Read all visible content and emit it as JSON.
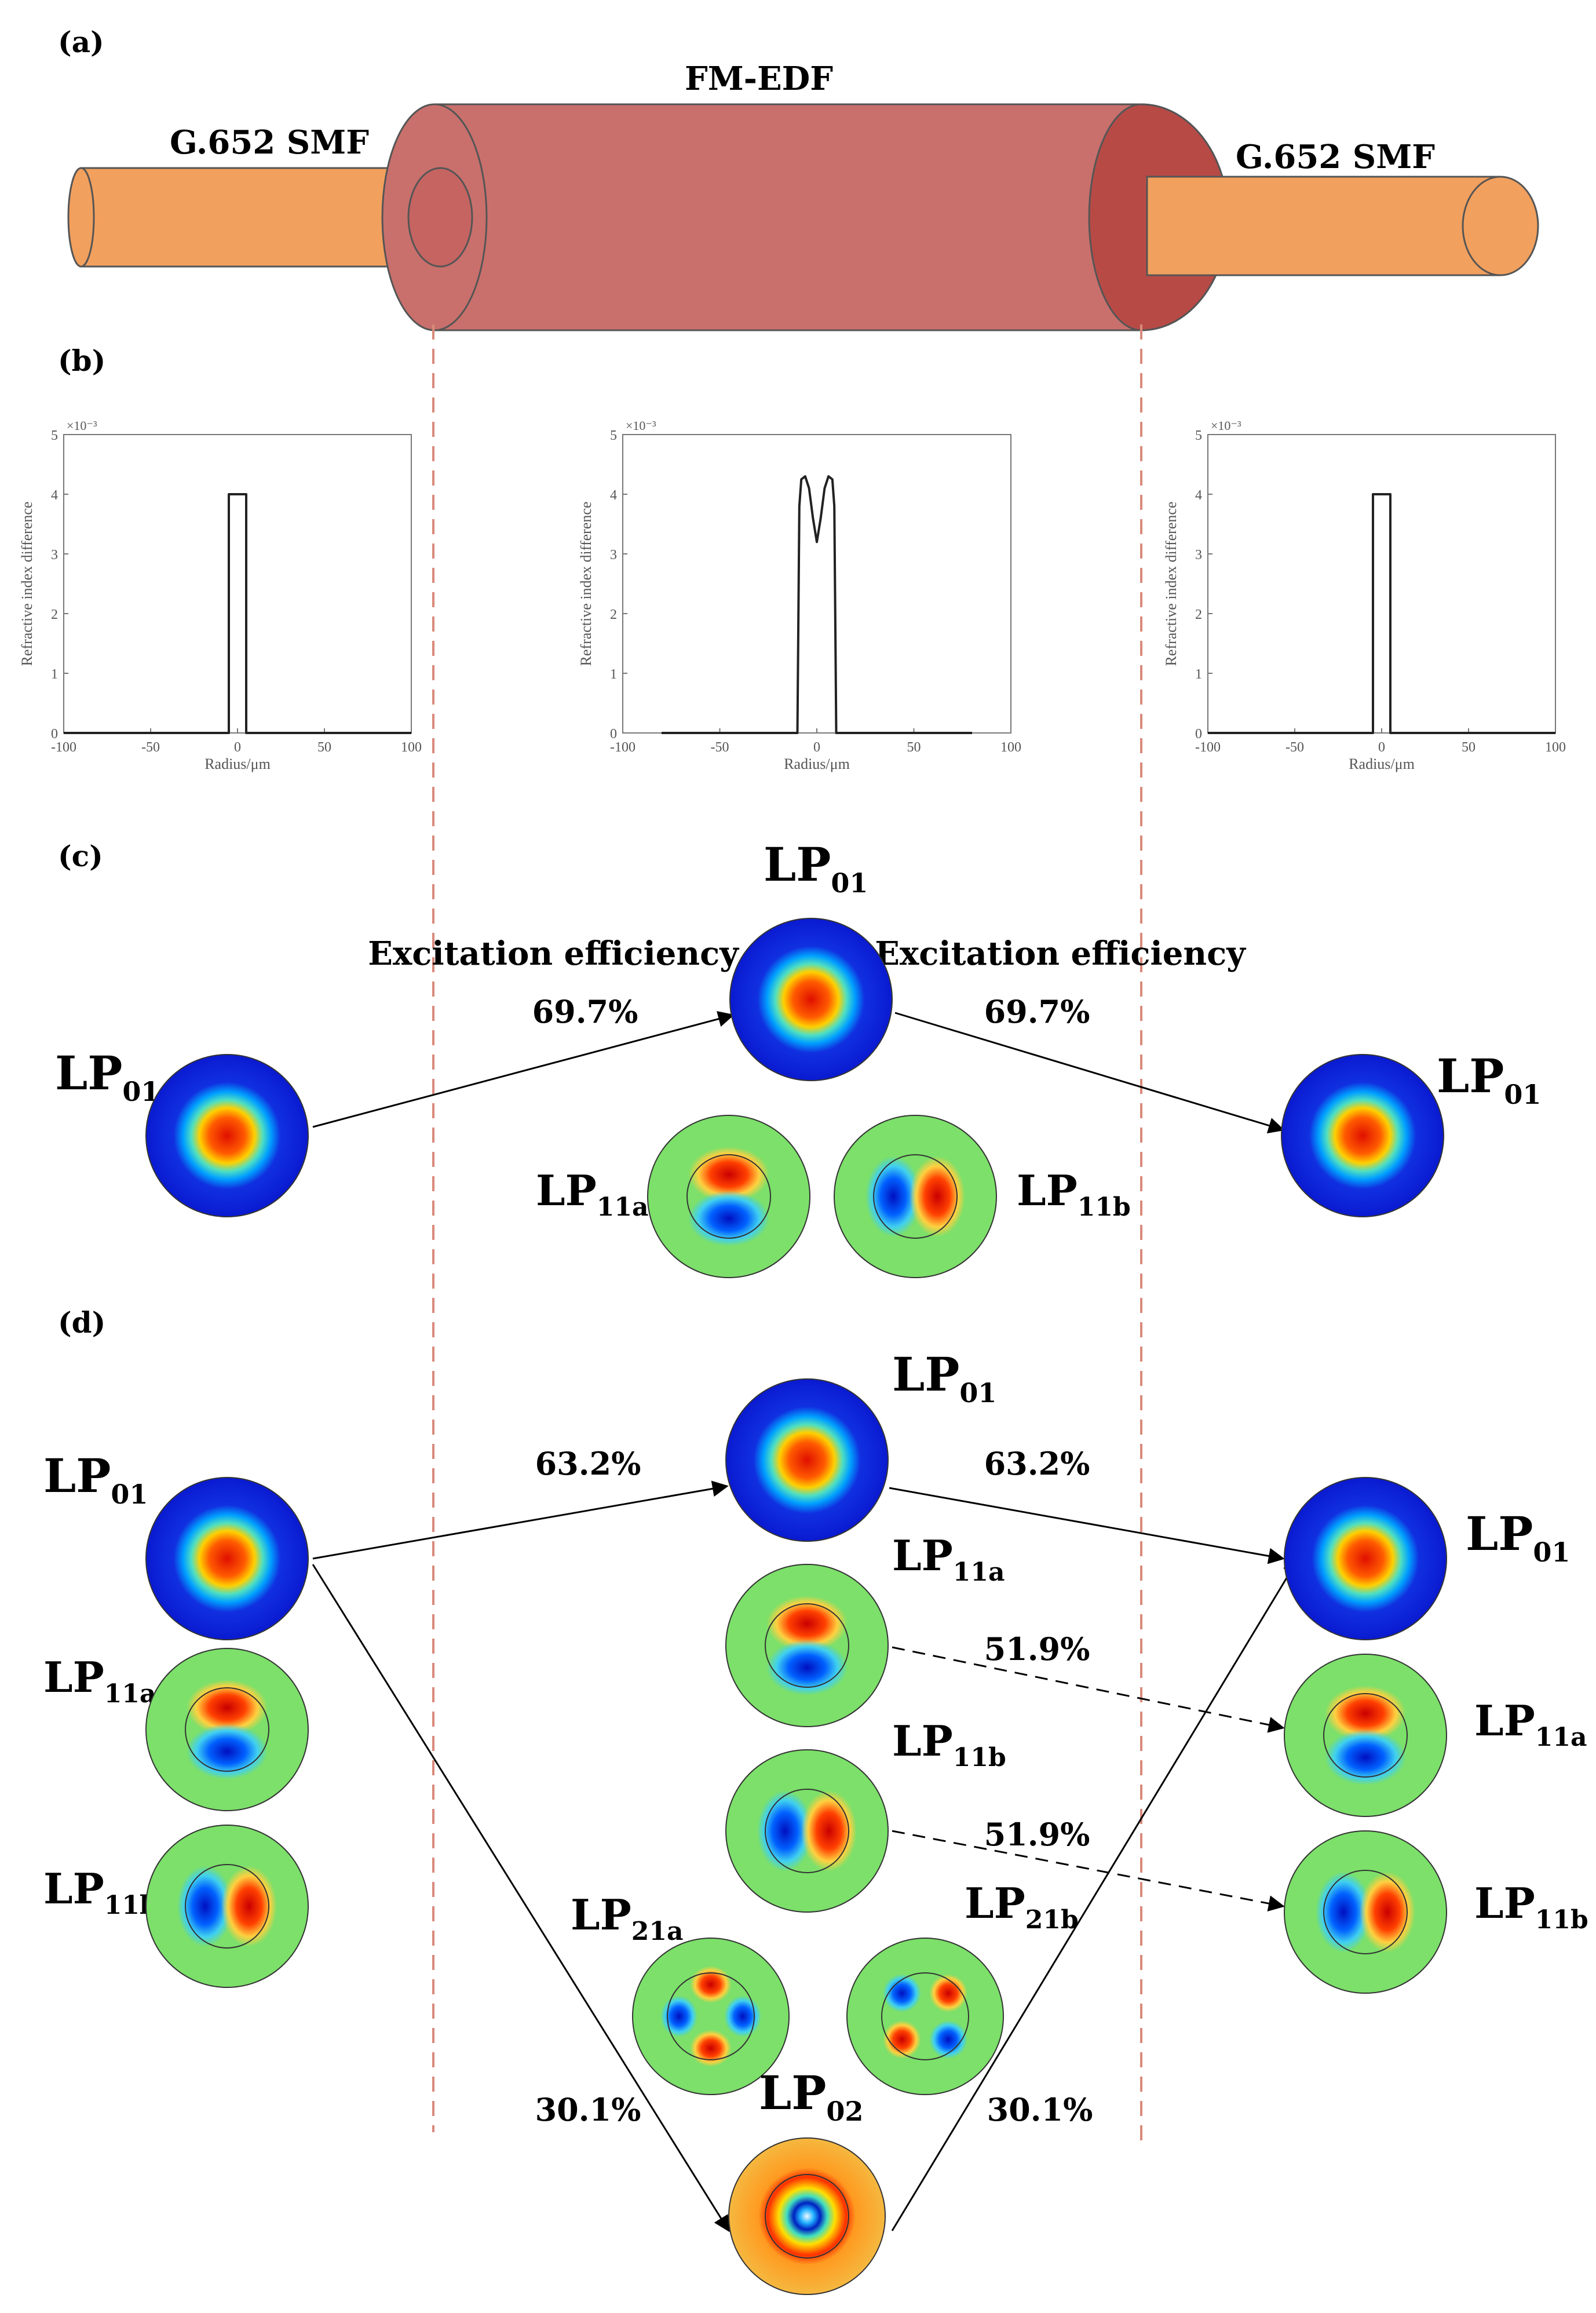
{
  "panel_labels": [
    "(a)",
    "(b)",
    "(c)",
    "(d)"
  ],
  "fiber": {
    "left_label": "G.652 SMF",
    "center_label": "FM-EDF",
    "right_label": "G.652 SMF",
    "smf_color": "#f2a05e",
    "edf_color": "#c9706c"
  },
  "refractive_profiles": [
    {
      "type": "line",
      "ylabel": "Refractive index difference",
      "xlabel": "Radius/μm",
      "exponent": "×10⁻³",
      "xlim": [
        -100,
        100
      ],
      "ylim": [
        0,
        5
      ],
      "xticks": [
        "-100",
        "-50",
        "0",
        "50",
        "100"
      ],
      "yticks": [
        "0",
        "1",
        "2",
        "3",
        "4",
        "5"
      ],
      "x": [
        -100,
        -5,
        -5,
        5,
        5,
        100
      ],
      "y": [
        0,
        0,
        4,
        4,
        0,
        0
      ]
    },
    {
      "type": "line",
      "ylabel": "Refractive index difference",
      "xlabel": "Radius/μm",
      "exponent": "×10⁻³",
      "xlim": [
        -100,
        100
      ],
      "ylim": [
        0,
        5
      ],
      "xticks": [
        "-100",
        "-50",
        "0",
        "50",
        "100"
      ],
      "yticks": [
        "0",
        "1",
        "2",
        "3",
        "4",
        "5"
      ],
      "x": [
        -80,
        -10,
        -9,
        -8,
        -6,
        -4,
        -2,
        0,
        2,
        4,
        6,
        8,
        9,
        10,
        80
      ],
      "y": [
        0,
        0,
        3.8,
        4.25,
        4.3,
        4.1,
        3.6,
        3.2,
        3.6,
        4.1,
        4.3,
        4.25,
        3.8,
        0,
        0
      ]
    },
    {
      "type": "line",
      "ylabel": "Refractive index difference",
      "xlabel": "Radius/μm",
      "exponent": "×10⁻³",
      "xlim": [
        -100,
        100
      ],
      "ylim": [
        0,
        5
      ],
      "xticks": [
        "-100",
        "-50",
        "0",
        "50",
        "100"
      ],
      "yticks": [
        "0",
        "1",
        "2",
        "3",
        "4",
        "5"
      ],
      "x": [
        -100,
        -5,
        -5,
        5,
        5,
        100
      ],
      "y": [
        0,
        0,
        4,
        4,
        0,
        0
      ]
    }
  ],
  "panel_c": {
    "input_mode": {
      "main": "LP",
      "sub": "01"
    },
    "edf_modes": [
      {
        "main": "LP",
        "sub": "01"
      },
      {
        "main": "LP",
        "sub": "11a"
      },
      {
        "main": "LP",
        "sub": "11b"
      }
    ],
    "output_mode": {
      "main": "LP",
      "sub": "01"
    },
    "left_caption": "Excitation efficiency",
    "right_caption": "Excitation efficiency",
    "in_efficiency": "69.7%",
    "out_efficiency": "69.7%"
  },
  "panel_d": {
    "input_modes": [
      {
        "main": "LP",
        "sub": "01"
      },
      {
        "main": "LP",
        "sub": "11a"
      },
      {
        "main": "LP",
        "sub": "11b"
      }
    ],
    "edf_modes": [
      {
        "main": "LP",
        "sub": "01"
      },
      {
        "main": "LP",
        "sub": "11a"
      },
      {
        "main": "LP",
        "sub": "11b"
      },
      {
        "main": "LP",
        "sub": "21a"
      },
      {
        "main": "LP",
        "sub": "21b"
      },
      {
        "main": "LP",
        "sub": "02"
      }
    ],
    "output_modes": [
      {
        "main": "LP",
        "sub": "01"
      },
      {
        "main": "LP",
        "sub": "11a"
      },
      {
        "main": "LP",
        "sub": "11b"
      }
    ],
    "eff_lp01_in": "63.2%",
    "eff_lp01_out": "63.2%",
    "eff_lp11a": "51.9%",
    "eff_lp11b": "51.9%",
    "eff_lp02_in": "30.1%",
    "eff_lp02_out": "30.1%"
  }
}
